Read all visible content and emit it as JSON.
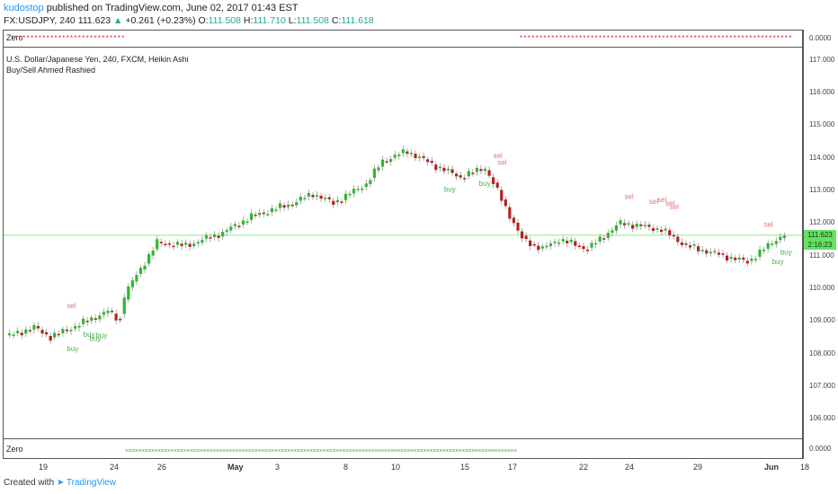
{
  "header": {
    "author": "kudostop",
    "published": "published on TradingView.com, June 02, 2017 01:43 EST",
    "symbol": "FX:USDJPY, 240",
    "last": "111.623",
    "change": "+0.261 (+0.23%)",
    "o_label": "O:",
    "o_value": "111.508",
    "h_label": "H:",
    "h_value": "111.710",
    "l_label": "L:",
    "l_value": "111.508",
    "c_label": "C:",
    "c_value": "111.618"
  },
  "panes": {
    "top_title": "Zero",
    "top_axis_value": "0.0000",
    "main_title": "U.S. Dollar/Japanese Yen, 240, FXCM, Heikin Ashi",
    "main_indicator": "Buy/Sell Ahmed Rashied",
    "bottom_title": "Zero",
    "bottom_axis_value": "0.0000"
  },
  "price_tag": {
    "price": "111.623",
    "countdown": "2:16:23"
  },
  "footer": {
    "created_with": "Created with",
    "brand": "TradingView"
  },
  "colors": {
    "up": "#2eb82e",
    "down": "#b22222",
    "buy_label": "#4caf50",
    "sell_label": "#e57373",
    "price_line": "#66e066"
  },
  "chart_data": {
    "type": "candlestick",
    "style": "Heikin Ashi",
    "title": "U.S. Dollar/Japanese Yen, 240, FXCM, Heikin Ashi",
    "ylim": [
      105.4,
      117.4
    ],
    "y_ticks": [
      "117.000",
      "116.000",
      "115.000",
      "114.000",
      "113.000",
      "112.000",
      "111.000",
      "110.000",
      "109.000",
      "108.000",
      "107.000",
      "106.000"
    ],
    "x_ticks": [
      "19",
      "24",
      "26",
      "May",
      "3",
      "8",
      "10",
      "15",
      "17",
      "22",
      "24",
      "29",
      "Jun",
      "18"
    ],
    "current_price": 111.623,
    "anchors": [
      [
        0,
        108.5
      ],
      [
        14,
        108.8
      ],
      [
        22,
        108.5
      ],
      [
        40,
        109.0
      ],
      [
        50,
        109.3
      ],
      [
        56,
        109.0
      ],
      [
        58,
        109.8
      ],
      [
        66,
        110.6
      ],
      [
        74,
        111.4
      ],
      [
        88,
        111.3
      ],
      [
        106,
        111.7
      ],
      [
        120,
        112.2
      ],
      [
        140,
        112.6
      ],
      [
        150,
        112.9
      ],
      [
        160,
        112.6
      ],
      [
        176,
        113.2
      ],
      [
        184,
        113.9
      ],
      [
        196,
        114.2
      ],
      [
        208,
        113.8
      ],
      [
        222,
        113.4
      ],
      [
        234,
        113.7
      ],
      [
        252,
        111.5
      ],
      [
        262,
        111.2
      ],
      [
        270,
        111.5
      ],
      [
        284,
        111.2
      ],
      [
        300,
        112.0
      ],
      [
        320,
        111.8
      ],
      [
        332,
        111.3
      ],
      [
        350,
        111.0
      ],
      [
        362,
        110.8
      ],
      [
        376,
        111.5
      ],
      [
        380,
        111.65
      ]
    ],
    "signals": [
      {
        "type": "sell",
        "label": "sel",
        "i": 30
      },
      {
        "type": "sell",
        "label": "sel",
        "i": 238
      },
      {
        "type": "sell",
        "label": "sel",
        "i": 240
      },
      {
        "type": "sell",
        "label": "sel",
        "i": 302
      },
      {
        "type": "sell",
        "label": "sel",
        "i": 314
      },
      {
        "type": "sell",
        "label": "sel",
        "i": 318
      },
      {
        "type": "sell",
        "label": "sel",
        "i": 322
      },
      {
        "type": "sell",
        "label": "sel",
        "i": 324
      },
      {
        "type": "sell",
        "label": "sel",
        "i": 370
      },
      {
        "type": "buy",
        "label": "buy",
        "i": 30
      },
      {
        "type": "buy",
        "label": "buy",
        "i": 38
      },
      {
        "type": "buy",
        "label": "buy",
        "i": 41
      },
      {
        "type": "buy",
        "label": "buy",
        "i": 44
      },
      {
        "type": "buy",
        "label": "buy",
        "i": 214
      },
      {
        "type": "buy",
        "label": "buy",
        "i": 231
      },
      {
        "type": "buy",
        "label": "buy",
        "i": 374
      },
      {
        "type": "buy",
        "label": "buy",
        "i": 378
      }
    ]
  }
}
